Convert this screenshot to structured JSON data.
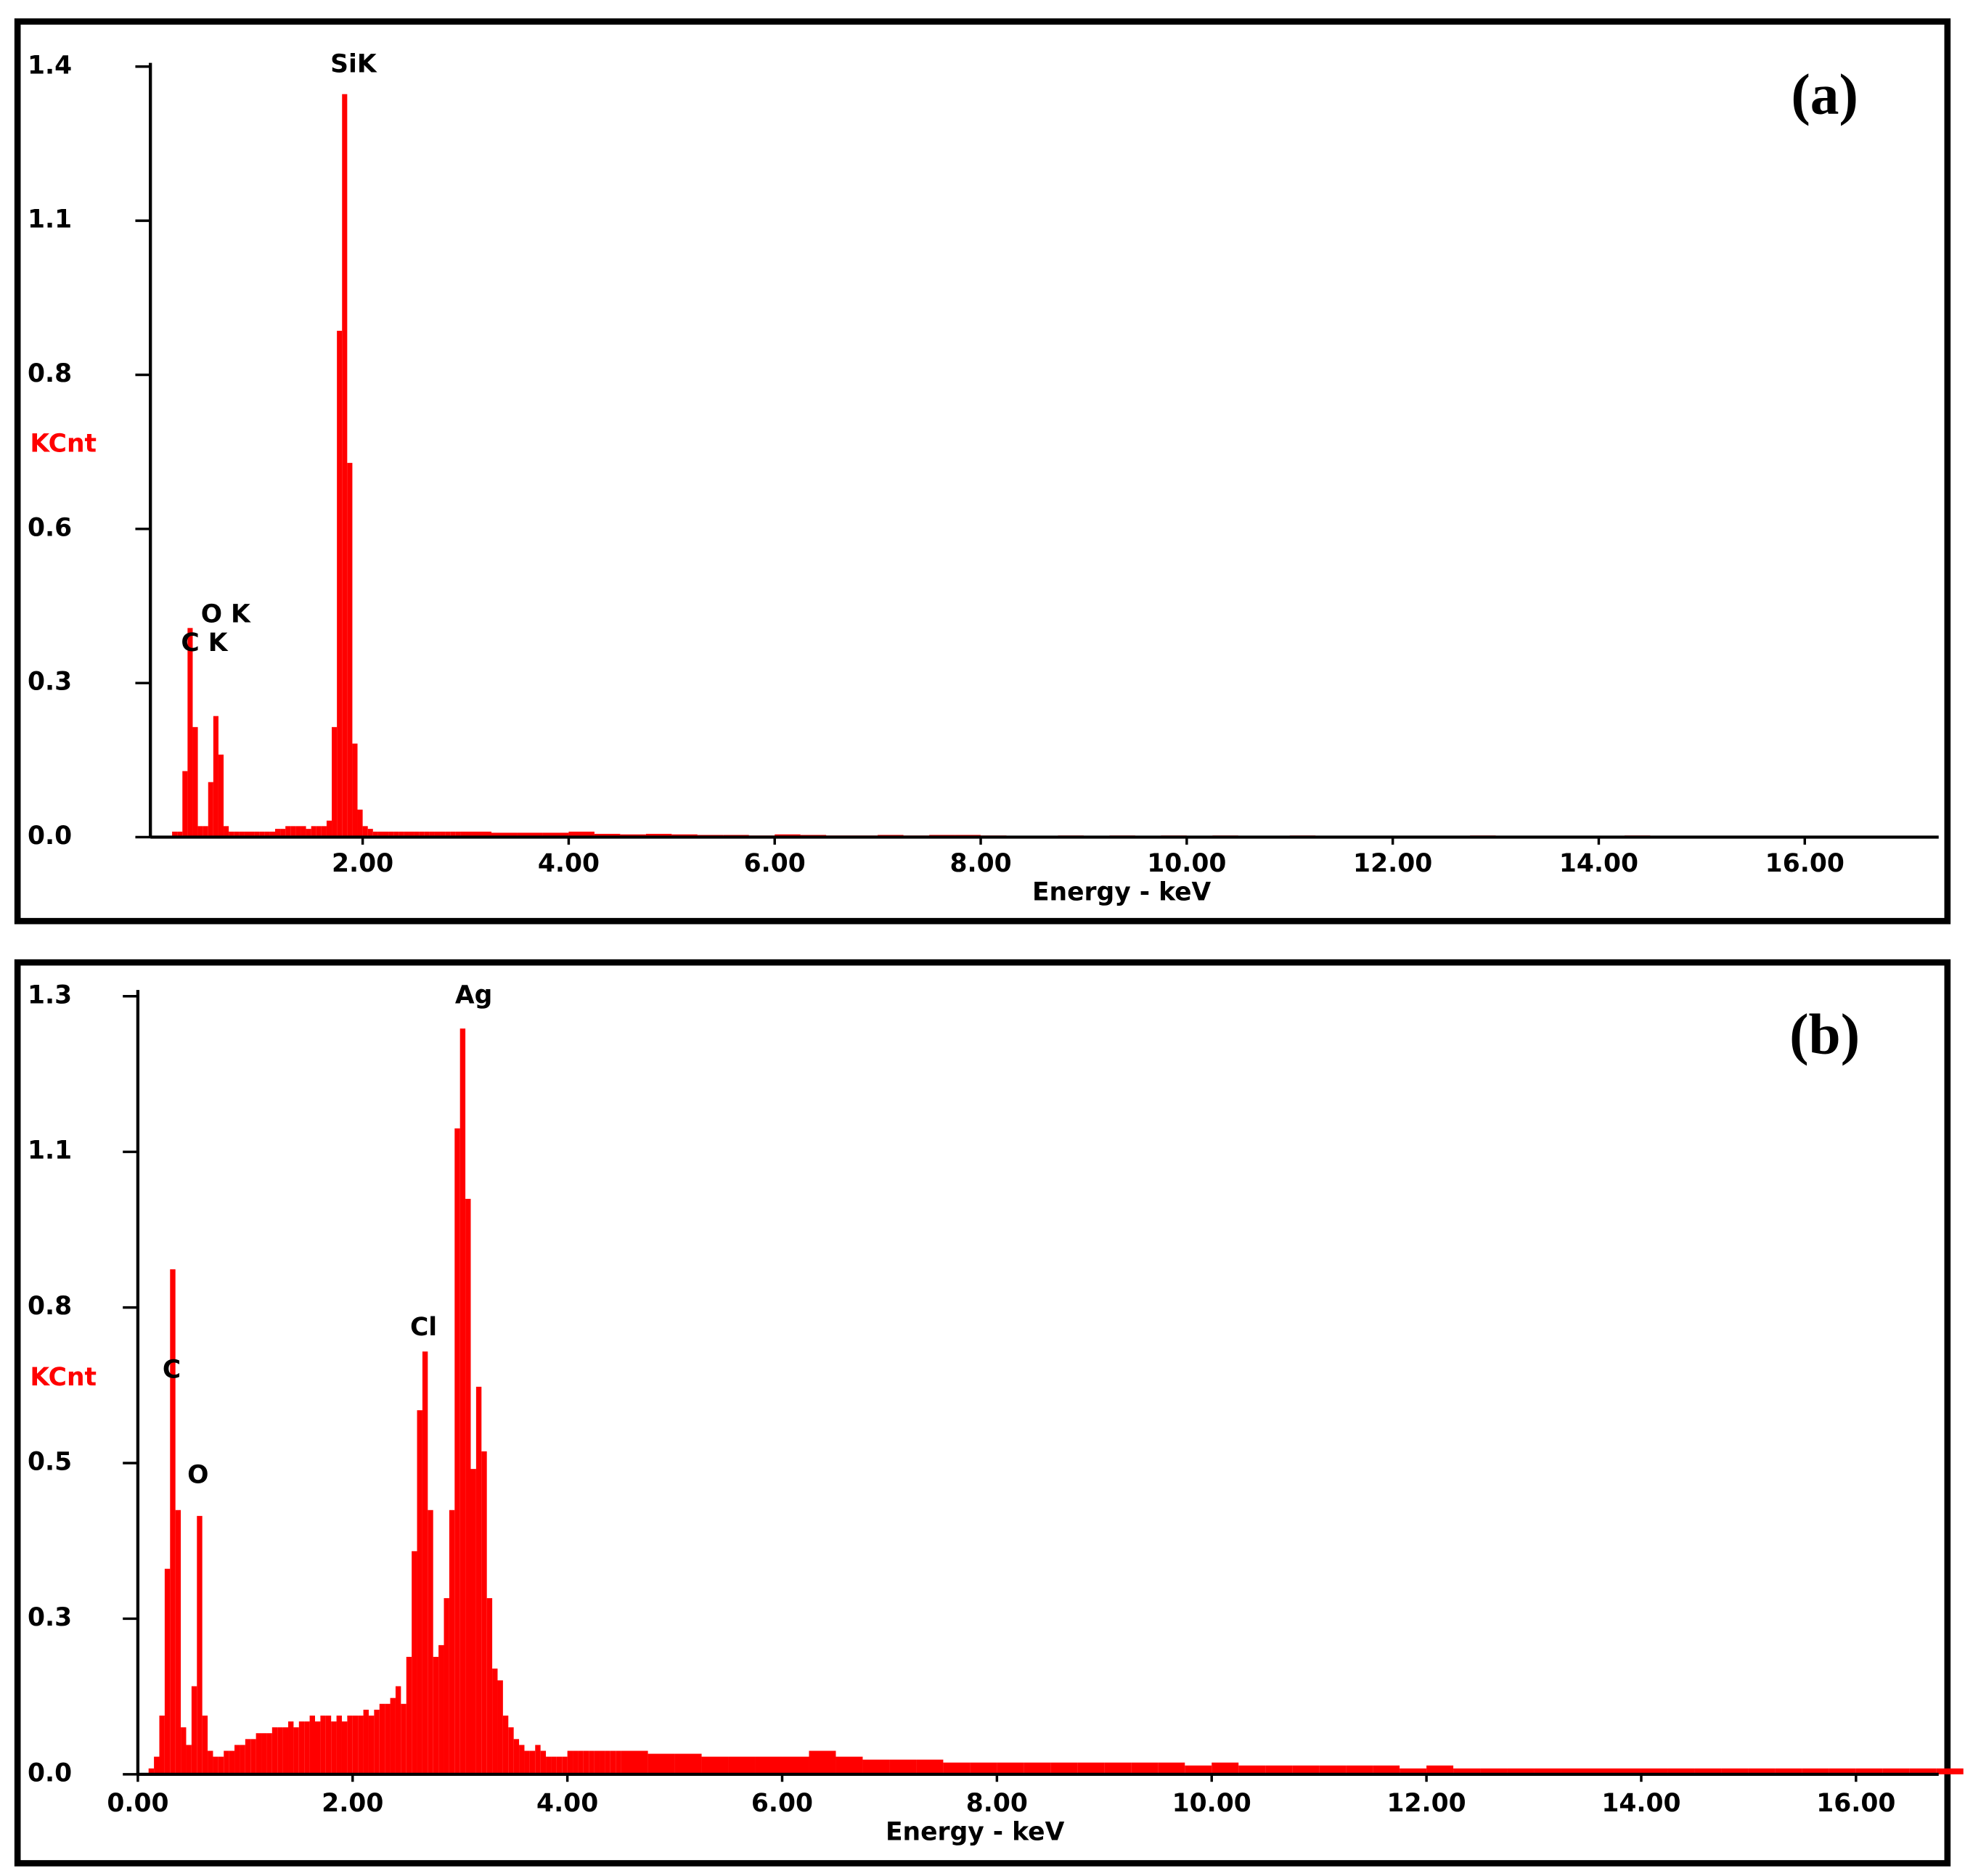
{
  "chart_data": [
    {
      "type": "bar",
      "panel_label": "(a)",
      "ylabel": "KCnt",
      "xlabel": "Energy - keV",
      "color": "#ff0000",
      "peak_labels": [
        "SiK",
        "O K",
        "C K"
      ],
      "xlim": [
        0,
        17.3
      ],
      "ylim": [
        0,
        1.4
      ],
      "xticks": [
        {
          "value": 2,
          "label": "2.00"
        },
        {
          "value": 4,
          "label": "4.00"
        },
        {
          "value": 6,
          "label": "6.00"
        },
        {
          "value": 8,
          "label": "8.00"
        },
        {
          "value": 10,
          "label": "10.00"
        },
        {
          "value": 12,
          "label": "12.00"
        },
        {
          "value": 14,
          "label": "14.00"
        },
        {
          "value": 16,
          "label": "16.00"
        }
      ],
      "yticks": [
        {
          "value": 0,
          "label": "0.0"
        },
        {
          "value": 0.28,
          "label": "0.3"
        },
        {
          "value": 0.56,
          "label": "0.6"
        },
        {
          "value": 0.84,
          "label": "0.8"
        },
        {
          "value": 1.12,
          "label": "1.1"
        },
        1.4
      ],
      "x": [
        0.15,
        0.2,
        0.25,
        0.3,
        0.35,
        0.4,
        0.45,
        0.5,
        0.55,
        0.6,
        0.65,
        0.7,
        0.75,
        0.8,
        0.85,
        0.9,
        0.95,
        1.0,
        1.05,
        1.1,
        1.15,
        1.2,
        1.25,
        1.3,
        1.35,
        1.4,
        1.45,
        1.5,
        1.55,
        1.6,
        1.65,
        1.7,
        1.75,
        1.8,
        1.85,
        1.9,
        1.95,
        2.0,
        2.05,
        2.1,
        2.15,
        2.2,
        2.25,
        2.3,
        2.35,
        2.4,
        2.45,
        2.5,
        2.55,
        2.6,
        2.65,
        2.7,
        2.75,
        2.8,
        2.85,
        2.9,
        2.95,
        3.0,
        3.25,
        3.5,
        3.75,
        4.0,
        4.25,
        4.5,
        4.75,
        5.0,
        5.25,
        5.5,
        5.75,
        6.0,
        6.25,
        6.5,
        6.75,
        7.0,
        7.25,
        7.5,
        7.75,
        8.0,
        8.25,
        8.5,
        8.75,
        9.0,
        9.25,
        9.5,
        9.75,
        10.0,
        10.25,
        10.5,
        10.75,
        11.0,
        11.25,
        11.5,
        11.75,
        12.0,
        12.25,
        12.5,
        12.75,
        13.0,
        13.25,
        13.5,
        13.75,
        14.0,
        14.25,
        14.5,
        14.75,
        15.0
      ],
      "values": [
        0.01,
        0.01,
        0.12,
        0.38,
        0.2,
        0.02,
        0.02,
        0.1,
        0.22,
        0.15,
        0.02,
        0.01,
        0.01,
        0.01,
        0.01,
        0.01,
        0.01,
        0.01,
        0.01,
        0.01,
        0.015,
        0.015,
        0.02,
        0.02,
        0.02,
        0.02,
        0.015,
        0.02,
        0.02,
        0.02,
        0.03,
        0.2,
        0.92,
        1.35,
        0.68,
        0.17,
        0.05,
        0.02,
        0.015,
        0.01,
        0.01,
        0.01,
        0.01,
        0.01,
        0.01,
        0.01,
        0.01,
        0.01,
        0.01,
        0.01,
        0.01,
        0.01,
        0.01,
        0.01,
        0.01,
        0.01,
        0.01,
        0.01,
        0.008,
        0.008,
        0.008,
        0.01,
        0.006,
        0.005,
        0.006,
        0.005,
        0.004,
        0.004,
        0.003,
        0.005,
        0.004,
        0.003,
        0.003,
        0.004,
        0.003,
        0.004,
        0.004,
        0.003,
        0.002,
        0.002,
        0.003,
        0.002,
        0.003,
        0.002,
        0.003,
        0.002,
        0.003,
        0.002,
        0.002,
        0.003,
        0.002,
        0.002,
        0.002,
        0.002,
        0.002,
        0.002,
        0.003,
        0.002,
        0.002,
        0.002,
        0.002,
        0.002,
        0.003,
        0.002,
        0.002,
        0.002
      ]
    },
    {
      "type": "bar",
      "panel_label": "(b)",
      "ylabel": "KCnt",
      "xlabel": "Energy - keV",
      "color": "#ff0000",
      "peak_labels": [
        "Ag",
        "Cl",
        "C",
        "O"
      ],
      "xlim": [
        0,
        16.77
      ],
      "ylim": [
        0,
        1.325
      ],
      "xticks": [
        {
          "value": 0,
          "label": "0.00"
        },
        {
          "value": 2,
          "label": "2.00"
        },
        {
          "value": 4,
          "label": "4.00"
        },
        {
          "value": 6,
          "label": "6.00"
        },
        {
          "value": 8,
          "label": "8.00"
        },
        {
          "value": 10,
          "label": "10.00"
        },
        {
          "value": 12,
          "label": "12.00"
        },
        {
          "value": 14,
          "label": "14.00"
        },
        {
          "value": 16,
          "label": "16.00"
        }
      ],
      "yticks": [
        {
          "value": 0,
          "label": "0.0"
        },
        {
          "value": 0.265,
          "label": "0.3"
        },
        {
          "value": 0.53,
          "label": "0.5"
        },
        {
          "value": 0.795,
          "label": "0.8"
        },
        {
          "value": 1.06,
          "label": "1.1"
        },
        {
          "value": 1.325,
          "label": "1.3"
        }
      ],
      "x": [
        0.05,
        0.1,
        0.15,
        0.2,
        0.25,
        0.3,
        0.35,
        0.4,
        0.45,
        0.5,
        0.55,
        0.6,
        0.65,
        0.7,
        0.75,
        0.8,
        0.85,
        0.9,
        0.95,
        1.0,
        1.05,
        1.1,
        1.15,
        1.2,
        1.25,
        1.3,
        1.35,
        1.4,
        1.45,
        1.5,
        1.55,
        1.6,
        1.65,
        1.7,
        1.75,
        1.8,
        1.85,
        1.9,
        1.95,
        2.0,
        2.05,
        2.1,
        2.15,
        2.2,
        2.25,
        2.3,
        2.35,
        2.4,
        2.45,
        2.5,
        2.55,
        2.6,
        2.65,
        2.7,
        2.75,
        2.8,
        2.85,
        2.9,
        2.95,
        3.0,
        3.05,
        3.1,
        3.15,
        3.2,
        3.25,
        3.3,
        3.35,
        3.4,
        3.45,
        3.5,
        3.55,
        3.6,
        3.65,
        3.7,
        3.75,
        3.8,
        3.85,
        3.9,
        3.95,
        4.0,
        4.05,
        4.1,
        4.15,
        4.2,
        4.25,
        4.3,
        4.35,
        4.4,
        4.45,
        4.5,
        4.75,
        5.0,
        5.25,
        5.5,
        5.75,
        6.0,
        6.25,
        6.5,
        6.75,
        7.0,
        7.25,
        7.5,
        7.75,
        8.0,
        8.25,
        8.5,
        8.75,
        9.0,
        9.25,
        9.5,
        9.75,
        10.0,
        10.25,
        10.5,
        10.75,
        11.0,
        11.25,
        11.5,
        11.75,
        12.0,
        12.25,
        12.5,
        12.75,
        13.0,
        13.25,
        13.5,
        13.75,
        14.0,
        14.25,
        14.5,
        14.75,
        15.0,
        15.25,
        15.5,
        15.75,
        16.0,
        16.25,
        16.5,
        16.75
      ],
      "values": [
        0.0,
        0.01,
        0.03,
        0.1,
        0.35,
        0.86,
        0.45,
        0.08,
        0.05,
        0.15,
        0.44,
        0.1,
        0.04,
        0.03,
        0.03,
        0.04,
        0.04,
        0.05,
        0.05,
        0.06,
        0.06,
        0.07,
        0.07,
        0.07,
        0.08,
        0.08,
        0.08,
        0.09,
        0.08,
        0.09,
        0.09,
        0.1,
        0.09,
        0.1,
        0.1,
        0.09,
        0.1,
        0.09,
        0.1,
        0.1,
        0.1,
        0.11,
        0.1,
        0.11,
        0.12,
        0.12,
        0.13,
        0.15,
        0.12,
        0.2,
        0.38,
        0.62,
        0.72,
        0.45,
        0.2,
        0.22,
        0.3,
        0.45,
        1.1,
        1.27,
        0.98,
        0.52,
        0.66,
        0.55,
        0.3,
        0.18,
        0.16,
        0.1,
        0.08,
        0.06,
        0.05,
        0.04,
        0.04,
        0.05,
        0.04,
        0.03,
        0.03,
        0.03,
        0.03,
        0.04,
        0.04,
        0.04,
        0.04,
        0.04,
        0.04,
        0.04,
        0.04,
        0.04,
        0.04,
        0.04,
        0.035,
        0.035,
        0.03,
        0.03,
        0.03,
        0.03,
        0.04,
        0.03,
        0.025,
        0.025,
        0.025,
        0.02,
        0.02,
        0.02,
        0.02,
        0.02,
        0.02,
        0.02,
        0.02,
        0.02,
        0.015,
        0.02,
        0.015,
        0.015,
        0.015,
        0.015,
        0.015,
        0.015,
        0.01,
        0.015,
        0.01,
        0.01,
        0.01,
        0.01,
        0.01,
        0.01,
        0.01,
        0.01,
        0.01,
        0.01,
        0.01,
        0.01,
        0.01,
        0.01,
        0.01,
        0.01,
        0.01,
        0.01,
        0.01
      ]
    }
  ]
}
